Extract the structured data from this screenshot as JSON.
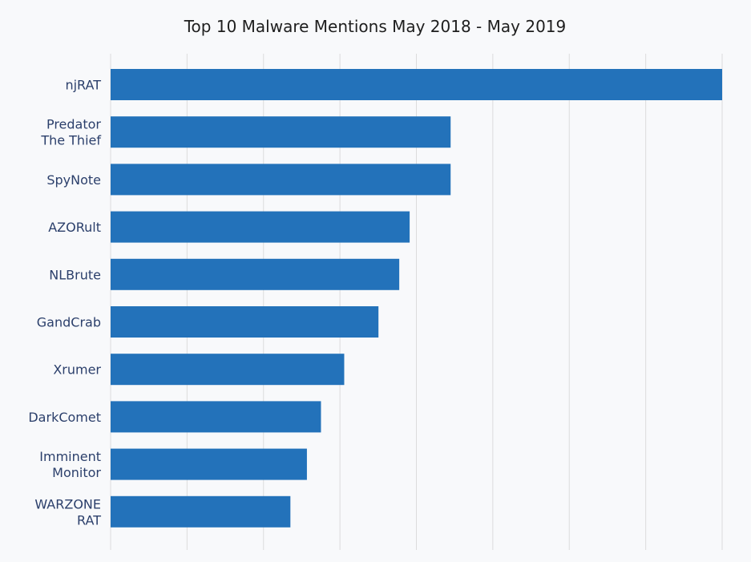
{
  "chart_data": {
    "type": "bar",
    "orientation": "horizontal",
    "title": "Top 10 Malware Mentions May 2018 - May 2019",
    "categories": [
      [
        "njRAT"
      ],
      [
        "Predator",
        "The Thief"
      ],
      [
        "SpyNote"
      ],
      [
        "AZORult"
      ],
      [
        "NLBrute"
      ],
      [
        "GandCrab"
      ],
      [
        "Xrumer"
      ],
      [
        "DarkComet"
      ],
      [
        "Imminent",
        "Monitor"
      ],
      [
        "WARZONE",
        "RAT"
      ]
    ],
    "values": [
      100,
      55.6,
      55.6,
      48.9,
      47.2,
      43.8,
      38.2,
      34.4,
      32.1,
      29.4
    ],
    "xlim": [
      0,
      100
    ],
    "grid": "vertical",
    "bar_color": "#2372ba",
    "grid_color": "#dcdcdc"
  }
}
